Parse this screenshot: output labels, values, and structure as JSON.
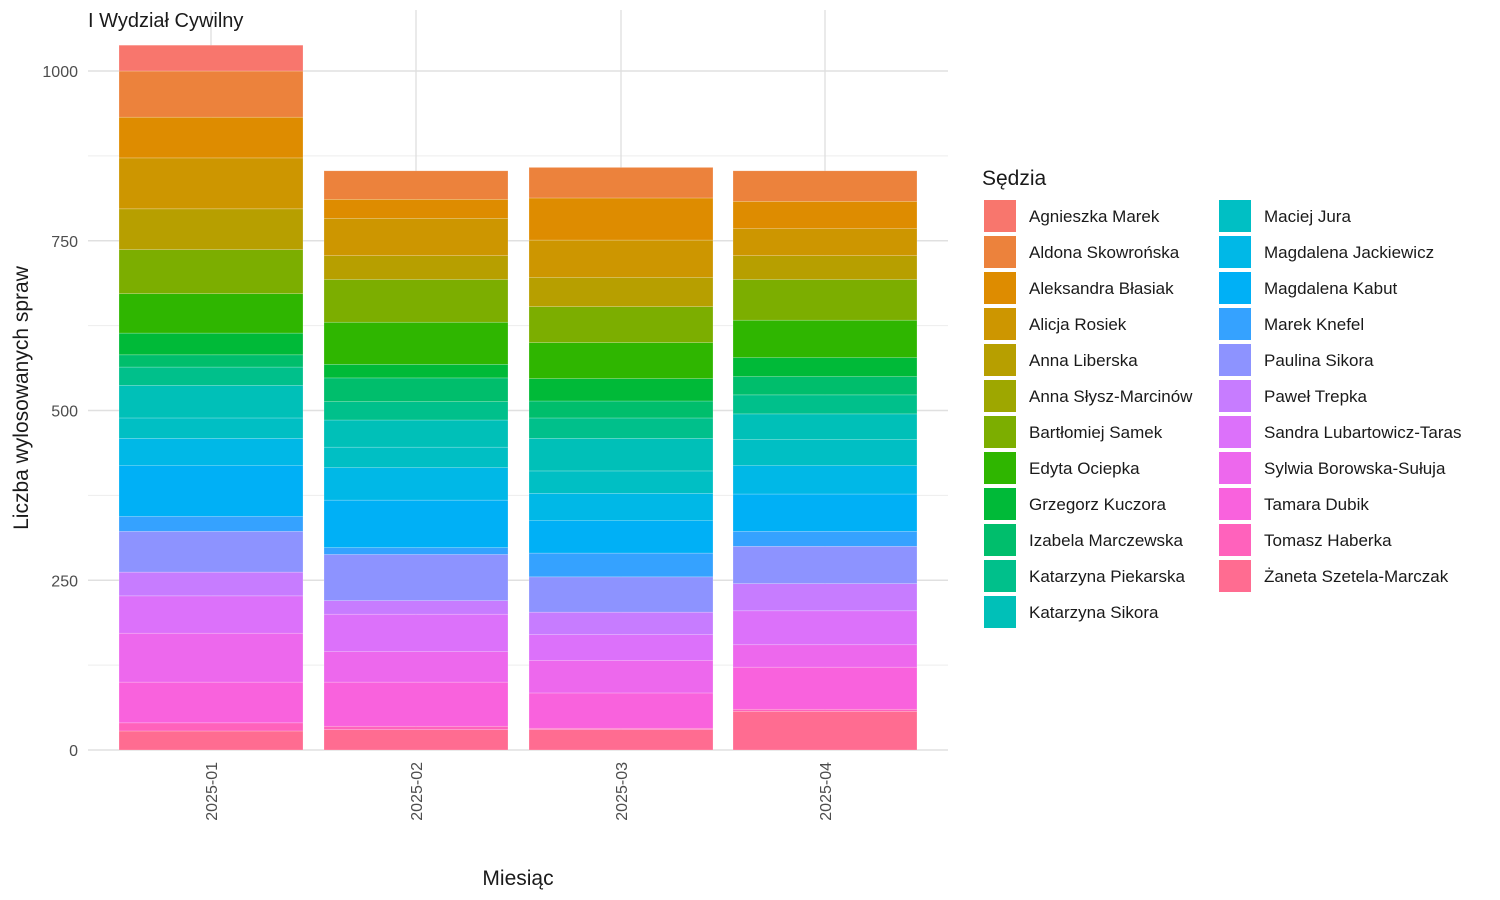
{
  "chart_data": {
    "type": "bar",
    "stacked": true,
    "title": "I Wydział Cywilny",
    "xlabel": "Miesiąc",
    "ylabel": "Liczba wylosowanych spraw",
    "ylim": [
      0,
      1050
    ],
    "yticks": [
      0,
      250,
      500,
      750,
      1000
    ],
    "grid": true,
    "legend_title": "Sędzia",
    "legend_position": "right",
    "categories": [
      "2025-01",
      "2025-02",
      "2025-03",
      "2025-04"
    ],
    "series": [
      {
        "name": "Agnieszka Marek",
        "color": "#F8766D",
        "values": [
          38,
          0,
          0,
          0
        ]
      },
      {
        "name": "Aldona Skowrońska",
        "color": "#EC823C",
        "values": [
          68,
          42,
          45,
          45
        ]
      },
      {
        "name": "Aleksandra Błasiak",
        "color": "#DE8C00",
        "values": [
          60,
          28,
          62,
          40
        ]
      },
      {
        "name": "Alicja Rosiek",
        "color": "#CD9600",
        "values": [
          75,
          55,
          55,
          40
        ]
      },
      {
        "name": "Anna Liberska",
        "color": "#B79F00",
        "values": [
          60,
          35,
          43,
          35
        ]
      },
      {
        "name": "Anna Słysz-Marcinów",
        "color": "#9EA700",
        "values": [
          0,
          0,
          0,
          0
        ]
      },
      {
        "name": "Bartłomiej Samek",
        "color": "#7CAE00",
        "values": [
          65,
          63,
          53,
          60
        ]
      },
      {
        "name": "Edyta Ociepka",
        "color": "#2FB600",
        "values": [
          58,
          62,
          53,
          55
        ]
      },
      {
        "name": "Grzegorz Kuczora",
        "color": "#00BA38",
        "values": [
          32,
          20,
          33,
          28
        ]
      },
      {
        "name": "Izabela Marczewska",
        "color": "#00BE6C",
        "values": [
          18,
          35,
          25,
          27
        ]
      },
      {
        "name": "Katarzyna Piekarska",
        "color": "#00C08B",
        "values": [
          27,
          27,
          30,
          28
        ]
      },
      {
        "name": "Katarzyna Sikora",
        "color": "#00C0B8",
        "values": [
          48,
          40,
          48,
          38
        ]
      },
      {
        "name": "Maciej Jura",
        "color": "#00BFC4",
        "values": [
          30,
          30,
          33,
          38
        ]
      },
      {
        "name": "Magdalena Jackiewicz",
        "color": "#00B8E7",
        "values": [
          40,
          48,
          40,
          42
        ]
      },
      {
        "name": "Magdalena Kabut",
        "color": "#00B0F6",
        "values": [
          75,
          70,
          48,
          55
        ]
      },
      {
        "name": "Marek Knefel",
        "color": "#35A2FF",
        "values": [
          22,
          10,
          35,
          22
        ]
      },
      {
        "name": "Paulina Sikora",
        "color": "#8D93FF",
        "values": [
          60,
          68,
          52,
          55
        ]
      },
      {
        "name": "Paweł Trepka",
        "color": "#C77CFF",
        "values": [
          35,
          20,
          33,
          40
        ]
      },
      {
        "name": "Sandra Lubartowicz-Taras",
        "color": "#DC71FA",
        "values": [
          55,
          55,
          38,
          50
        ]
      },
      {
        "name": "Sylwia Borowska-Sułuja",
        "color": "#ED68ED",
        "values": [
          72,
          45,
          48,
          33
        ]
      },
      {
        "name": "Tamara Dubik",
        "color": "#F962DD",
        "values": [
          60,
          65,
          52,
          62
        ]
      },
      {
        "name": "Tomasz Haberka",
        "color": "#FF62BC",
        "values": [
          12,
          5,
          2,
          3
        ]
      },
      {
        "name": "Żaneta Szetela-Marczak",
        "color": "#FF6C91",
        "values": [
          28,
          30,
          30,
          57
        ]
      }
    ]
  }
}
